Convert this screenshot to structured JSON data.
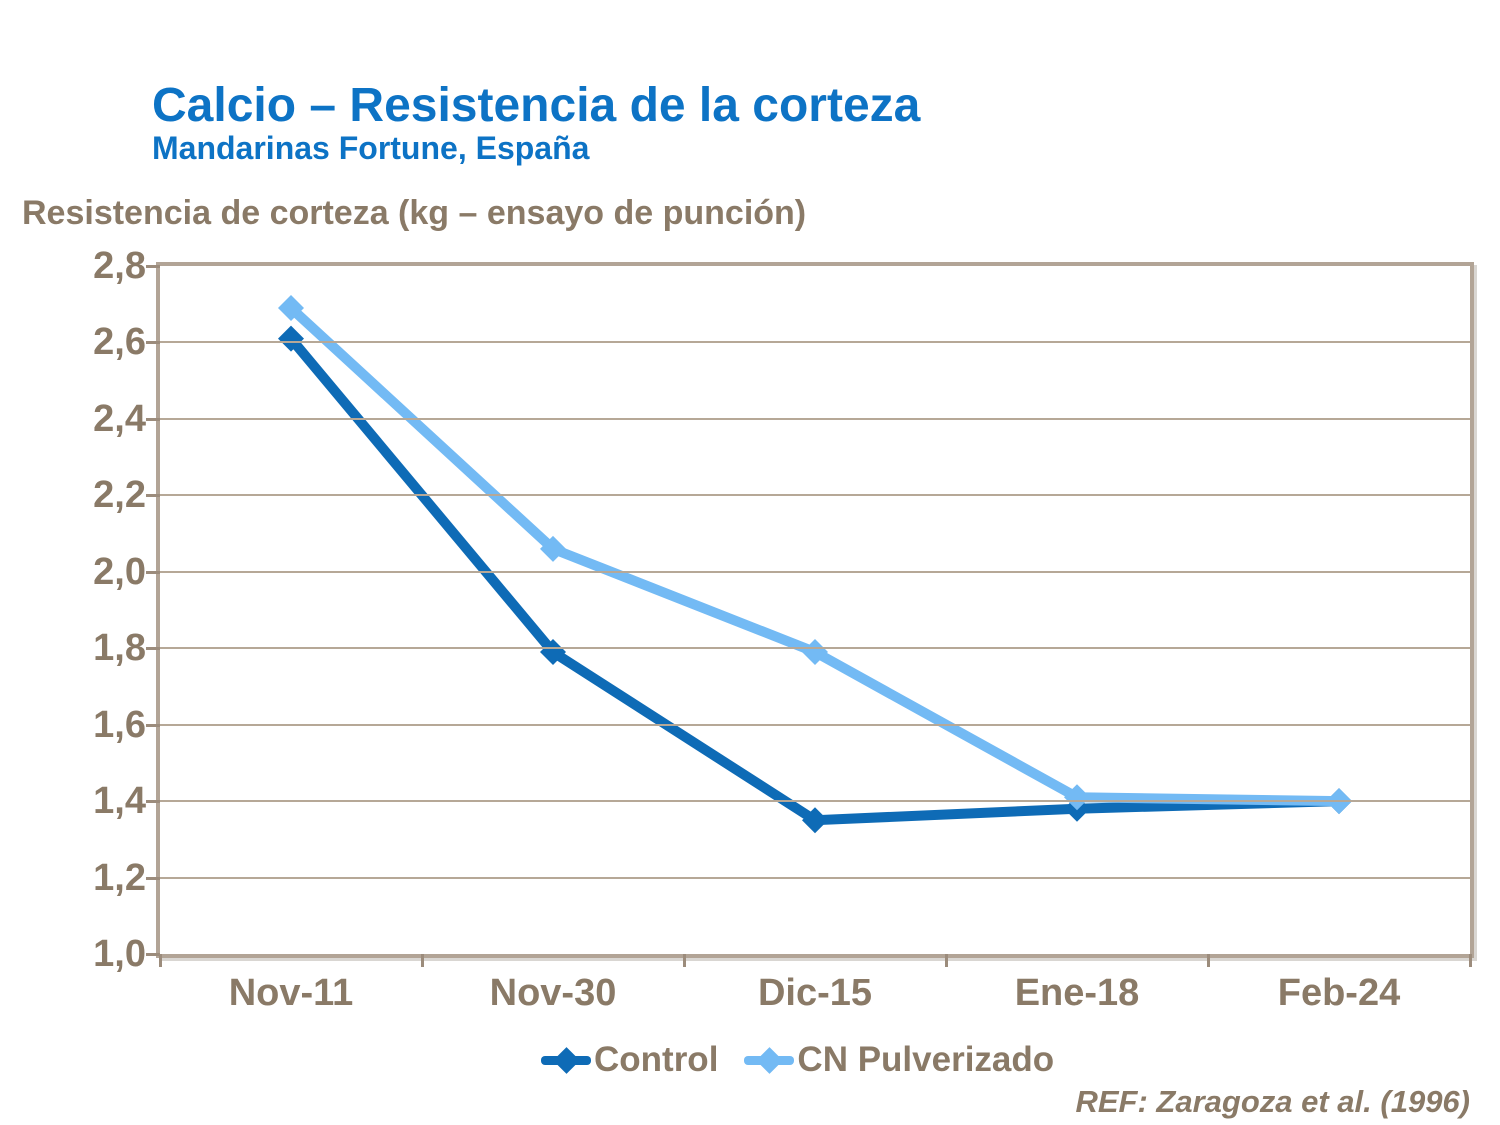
{
  "slide": {
    "title": "Calcio – Resistencia de la corteza",
    "subtitle": "Mandarinas Fortune, España",
    "axis_title": "Resistencia de corteza (kg – ensayo de punción)",
    "reference": "REF: Zaragoza et al. (1996)"
  },
  "colors": {
    "title_blue": "#0d73c5",
    "text_brown": "#8a7a67",
    "grid_tan": "#b6a897",
    "frame_tan": "#b2a496",
    "control_blue": "#0e6bb6",
    "cn_light_blue": "#73baf4"
  },
  "chart_data": {
    "type": "line",
    "title": "Resistencia de corteza (kg – ensayo de punción)",
    "categories": [
      "Nov-11",
      "Nov-30",
      "Dic-15",
      "Ene-18",
      "Feb-24"
    ],
    "series": [
      {
        "name": "Control",
        "color": "#0e6bb6",
        "values": [
          2.61,
          1.79,
          1.35,
          1.38,
          1.4
        ]
      },
      {
        "name": "CN Pulverizado",
        "color": "#73baf4",
        "values": [
          2.69,
          2.06,
          1.79,
          1.41,
          1.4
        ]
      }
    ],
    "ylim": [
      1.0,
      2.8
    ],
    "ytick_step": 0.2,
    "ytick_labels": [
      "2,8",
      "2,6",
      "2,4",
      "2,2",
      "2,0",
      "1,8",
      "1,6",
      "1,4",
      "1,2",
      "1,0"
    ],
    "xlabel": "",
    "ylabel": "Resistencia de corteza (kg – ensayo de punción)",
    "grid": "horizontal",
    "legend_position": "bottom",
    "marker": "diamond"
  }
}
